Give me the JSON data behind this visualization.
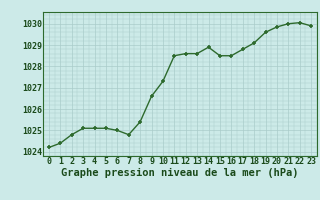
{
  "x": [
    0,
    1,
    2,
    3,
    4,
    5,
    6,
    7,
    8,
    9,
    10,
    11,
    12,
    13,
    14,
    15,
    16,
    17,
    18,
    19,
    20,
    21,
    22,
    23
  ],
  "y": [
    1024.2,
    1024.4,
    1024.8,
    1025.1,
    1025.1,
    1025.1,
    1025.0,
    1024.8,
    1025.4,
    1026.6,
    1027.3,
    1028.5,
    1028.6,
    1028.6,
    1028.9,
    1028.5,
    1028.5,
    1028.8,
    1029.1,
    1029.6,
    1029.85,
    1030.0,
    1030.05,
    1029.9
  ],
  "line_color": "#2d6a2d",
  "marker_color": "#2d6a2d",
  "bg_color": "#cceae8",
  "grid_color": "#aaccca",
  "title": "Graphe pression niveau de la mer (hPa)",
  "ylim": [
    1023.8,
    1030.55
  ],
  "yticks": [
    1024,
    1025,
    1026,
    1027,
    1028,
    1029,
    1030
  ],
  "xlim": [
    -0.5,
    23.5
  ],
  "xticks": [
    0,
    1,
    2,
    3,
    4,
    5,
    6,
    7,
    8,
    9,
    10,
    11,
    12,
    13,
    14,
    15,
    16,
    17,
    18,
    19,
    20,
    21,
    22,
    23
  ],
  "title_fontsize": 7.5,
  "tick_fontsize": 6.0,
  "title_color": "#1a4a1a",
  "tick_color": "#1a4a1a",
  "marker_size": 3.5,
  "line_width": 1.0
}
